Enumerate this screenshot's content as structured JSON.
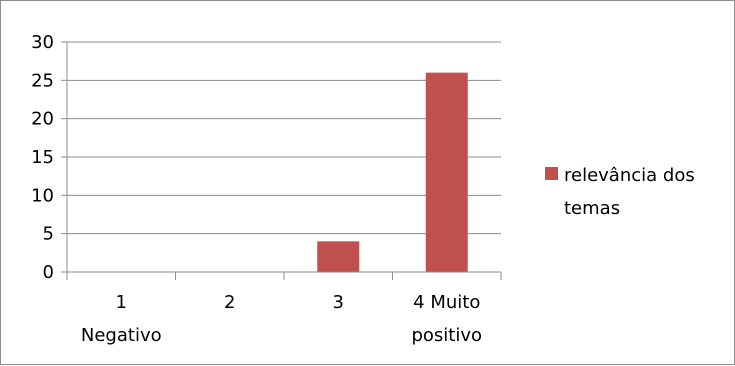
{
  "chart_data": {
    "type": "bar",
    "categories": [
      [
        "1",
        "Negativo"
      ],
      [
        "2"
      ],
      [
        "3"
      ],
      [
        "4 Muito",
        "positivo"
      ]
    ],
    "series": [
      {
        "name": "relevância dos temas",
        "legend_lines": [
          "relevância dos",
          "temas"
        ],
        "values": [
          0,
          0,
          4,
          26
        ],
        "color": "#c0504d"
      }
    ],
    "ylim": [
      0,
      30
    ],
    "yticks": [
      "0",
      "5",
      "10",
      "15",
      "20",
      "25",
      "30"
    ],
    "grid": true,
    "legend_position": "right",
    "title": "",
    "xlabel": "",
    "ylabel": ""
  }
}
